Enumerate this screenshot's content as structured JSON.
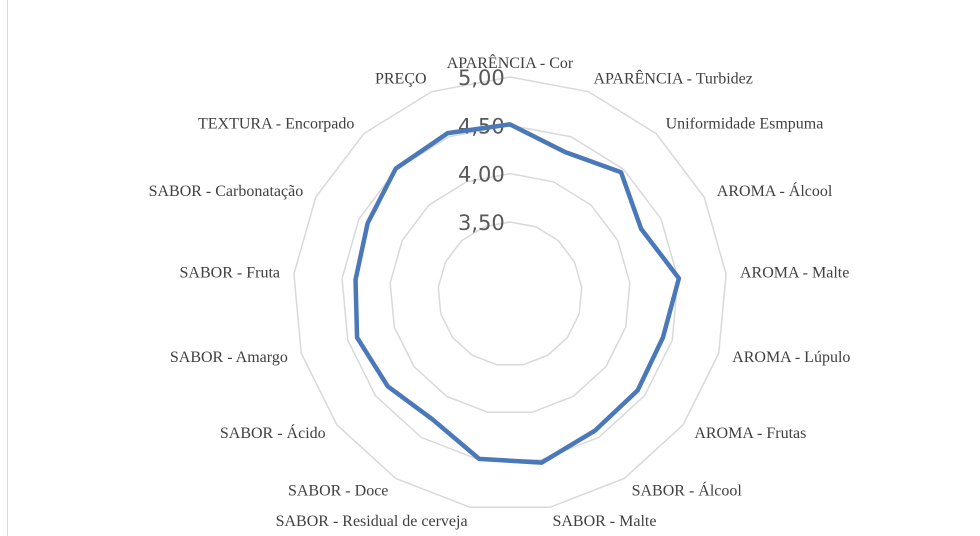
{
  "chart_data": {
    "type": "radar",
    "title": "",
    "categories": [
      "APARÊNCIA - Cor",
      "APARÊNCIA - Turbidez",
      "Uniformidade Esmpuma",
      "AROMA - Álcool",
      "AROMA - Malte",
      "AROMA - Lúpulo",
      "AROMA - Frutas",
      "SABOR - Álcool",
      "SABOR - Malte",
      "SABOR - Residual de cerveja",
      "SABOR - Doce",
      "SABOR - Ácido",
      "SABOR - Amargo",
      "SABOR - Fruta",
      "SABOR - Carbonatação",
      "TEXTURA - Encorpado",
      "PREÇO"
    ],
    "series": [
      {
        "values": [
          4.51,
          4.33,
          4.46,
          4.27,
          4.51,
          4.4,
          4.41,
          4.42,
          4.53,
          4.49,
          4.28,
          4.34,
          4.4,
          4.36,
          4.4,
          4.51,
          4.54
        ]
      }
    ],
    "ticks": [
      "3,50",
      "4,00",
      "4,50",
      "5,00"
    ],
    "rlim": [
      3.5,
      5.0
    ],
    "grid": true,
    "series_color": "#4a78b8",
    "grid_color": "#d9d9d9"
  }
}
